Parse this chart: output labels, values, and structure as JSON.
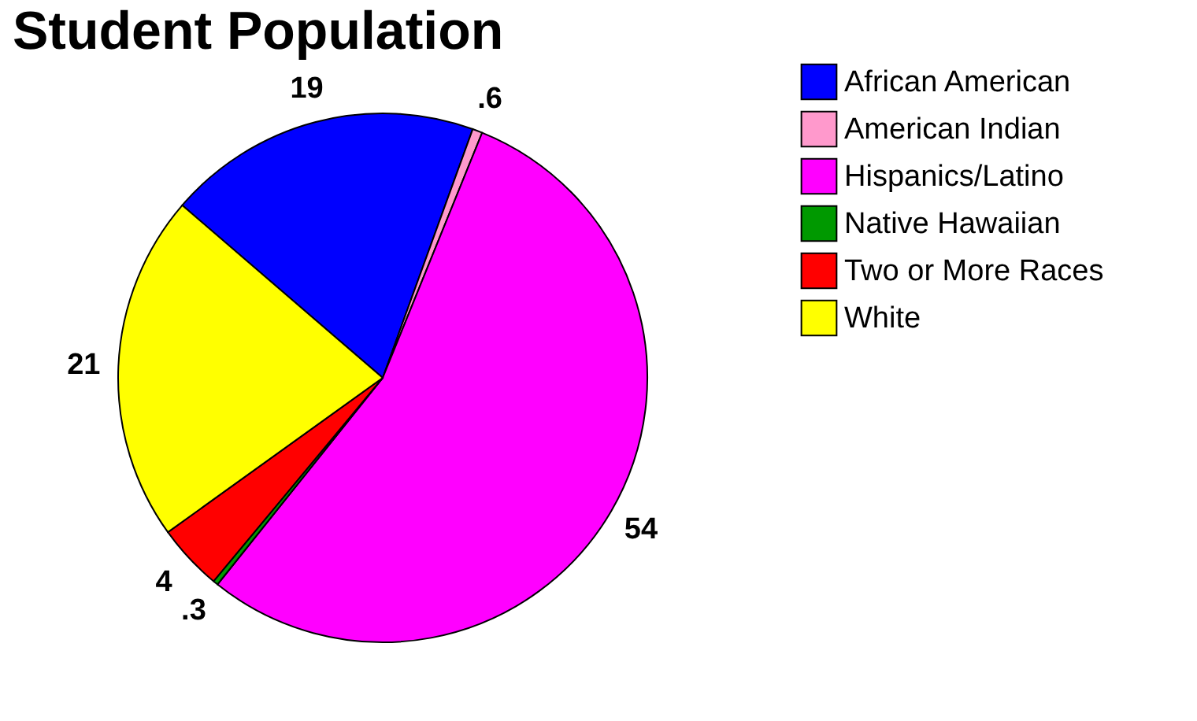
{
  "chart_data": {
    "type": "pie",
    "title": "Student Population",
    "categories": [
      "African American",
      "American Indian",
      "Hispanics/Latino",
      "Native Hawaiian",
      "Two or More Races",
      "White"
    ],
    "values": [
      19,
      0.6,
      54,
      0.3,
      4,
      21
    ],
    "value_labels": [
      "19",
      ".6",
      "54",
      ".3",
      "4",
      "21"
    ],
    "colors": [
      "#0000ff",
      "#ff99cc",
      "#ff00ff",
      "#009900",
      "#ff0000",
      "#ffff00"
    ],
    "legend": "right"
  }
}
